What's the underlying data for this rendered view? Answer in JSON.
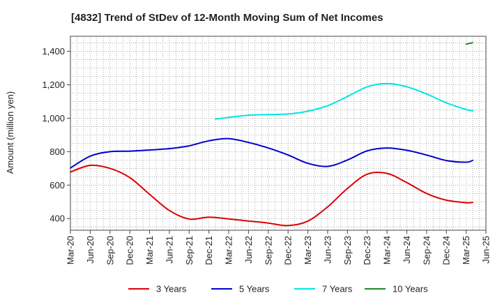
{
  "chart_data": {
    "type": "line",
    "title": "[4832]  Trend of StDev of 12-Month Moving Sum of Net Incomes",
    "ylabel": "Amount (million yen)",
    "xlabel": "",
    "ylim": [
      330,
      1490
    ],
    "yticks": [
      400,
      600,
      800,
      1000,
      1200,
      1400
    ],
    "ytick_labels": [
      "400",
      "600",
      "800",
      "1,000",
      "1,200",
      "1,400"
    ],
    "xticks": [
      "Mar-20",
      "Jun-20",
      "Sep-20",
      "Dec-20",
      "Mar-21",
      "Jun-21",
      "Sep-21",
      "Dec-21",
      "Mar-22",
      "Jun-22",
      "Sep-22",
      "Dec-22",
      "Mar-23",
      "Jun-23",
      "Sep-23",
      "Dec-23",
      "Mar-24",
      "Jun-24",
      "Sep-24",
      "Dec-24",
      "Mar-25",
      "Jun-25"
    ],
    "grid": true,
    "legend_position": "bottom",
    "series": [
      {
        "name": "3 Years",
        "color": "#dd0000",
        "points": [
          [
            0,
            678
          ],
          [
            1,
            718
          ],
          [
            2,
            700
          ],
          [
            3,
            645
          ],
          [
            4,
            545
          ],
          [
            5,
            448
          ],
          [
            6,
            397
          ],
          [
            7,
            408
          ],
          [
            8,
            398
          ],
          [
            9,
            385
          ],
          [
            10,
            373
          ],
          [
            11,
            358
          ],
          [
            12,
            385
          ],
          [
            13,
            470
          ],
          [
            14,
            580
          ],
          [
            15,
            665
          ],
          [
            16,
            670
          ],
          [
            17,
            615
          ],
          [
            18,
            550
          ],
          [
            19,
            510
          ],
          [
            20,
            495
          ],
          [
            20.33,
            497
          ]
        ]
      },
      {
        "name": "5 Years",
        "color": "#0000cc",
        "points": [
          [
            0,
            702
          ],
          [
            1,
            773
          ],
          [
            2,
            800
          ],
          [
            3,
            803
          ],
          [
            4,
            810
          ],
          [
            5,
            818
          ],
          [
            6,
            835
          ],
          [
            7,
            865
          ],
          [
            8,
            878
          ],
          [
            9,
            855
          ],
          [
            10,
            822
          ],
          [
            11,
            780
          ],
          [
            12,
            730
          ],
          [
            13,
            712
          ],
          [
            14,
            750
          ],
          [
            15,
            805
          ],
          [
            16,
            822
          ],
          [
            17,
            808
          ],
          [
            18,
            780
          ],
          [
            19,
            747
          ],
          [
            20,
            737
          ],
          [
            20.33,
            748
          ]
        ]
      },
      {
        "name": "7 Years",
        "color": "#00e5e5",
        "points": [
          [
            7.33,
            995
          ],
          [
            8,
            1005
          ],
          [
            9,
            1018
          ],
          [
            10,
            1022
          ],
          [
            11,
            1025
          ],
          [
            12,
            1042
          ],
          [
            13,
            1075
          ],
          [
            14,
            1130
          ],
          [
            15,
            1188
          ],
          [
            16,
            1207
          ],
          [
            17,
            1188
          ],
          [
            18,
            1145
          ],
          [
            19,
            1092
          ],
          [
            20,
            1052
          ],
          [
            20.33,
            1045
          ]
        ]
      },
      {
        "name": "10 Years",
        "color": "#228822",
        "points": [
          [
            20,
            1443
          ],
          [
            20.33,
            1452
          ]
        ]
      }
    ]
  }
}
